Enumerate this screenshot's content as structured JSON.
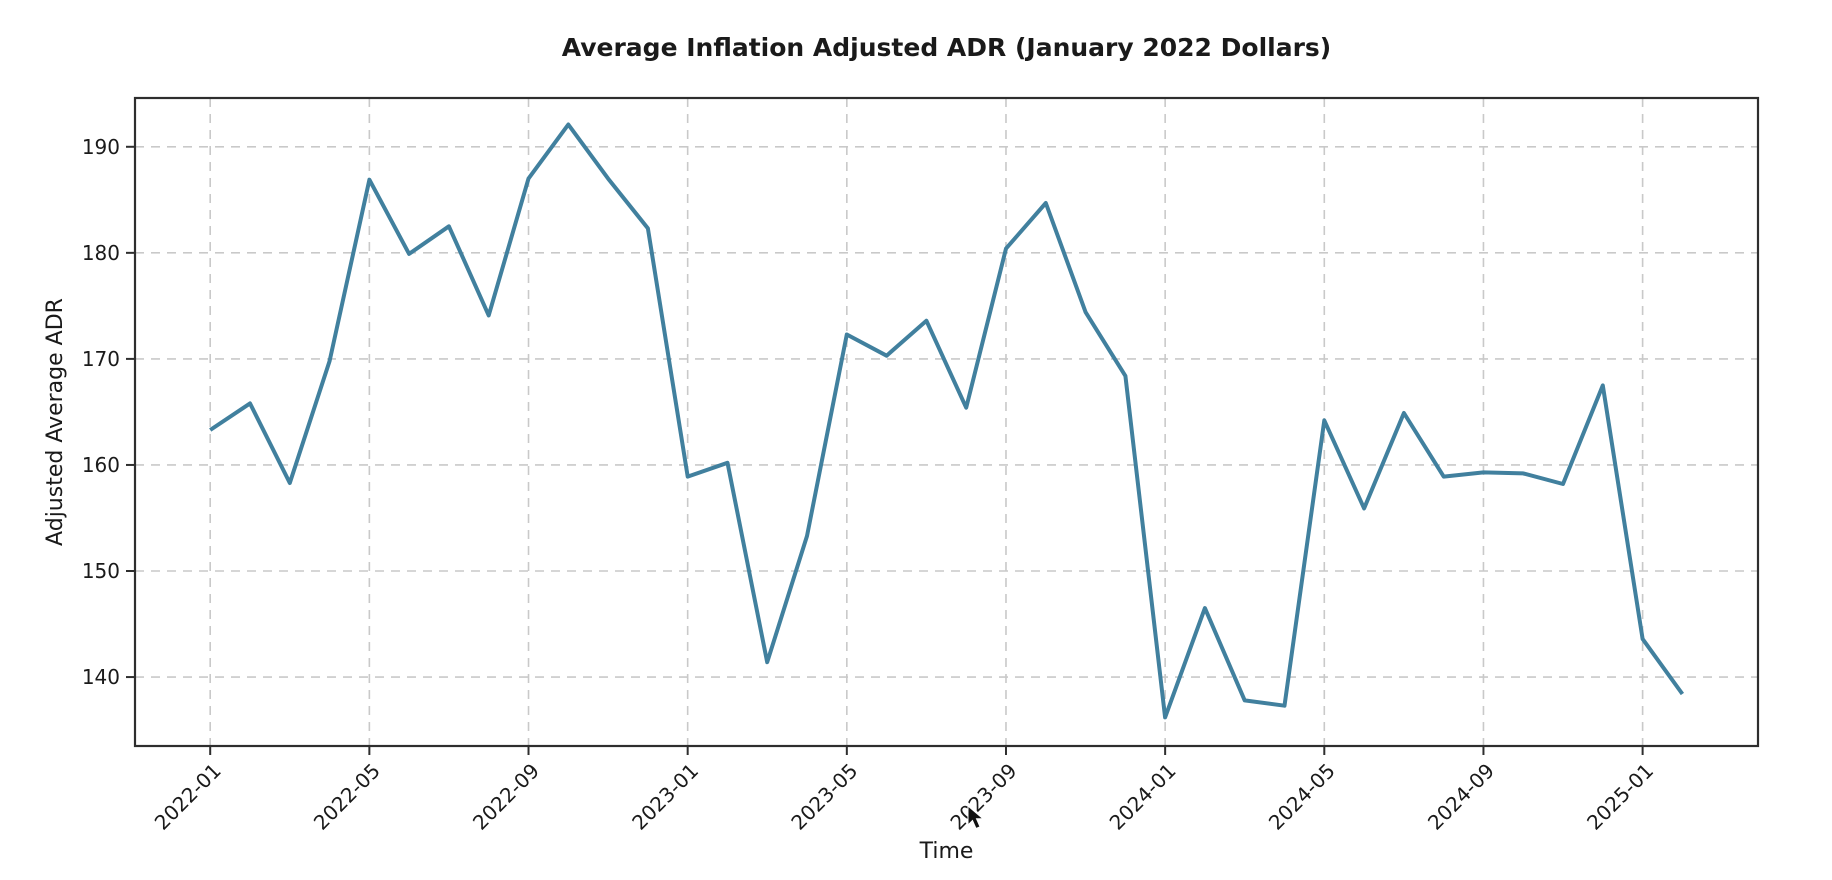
{
  "chart_data": {
    "type": "line",
    "title": "Average Inflation Adjusted ADR (January 2022 Dollars)",
    "xlabel": "Time",
    "ylabel": "Adjusted Average ADR",
    "categories": [
      "2022-01",
      "2022-02",
      "2022-03",
      "2022-04",
      "2022-05",
      "2022-06",
      "2022-07",
      "2022-08",
      "2022-09",
      "2022-10",
      "2022-11",
      "2022-12",
      "2023-01",
      "2023-02",
      "2023-03",
      "2023-04",
      "2023-05",
      "2023-06",
      "2023-07",
      "2023-08",
      "2023-09",
      "2023-10",
      "2023-11",
      "2023-12",
      "2024-01",
      "2024-02",
      "2024-03",
      "2024-04",
      "2024-05",
      "2024-06",
      "2024-07",
      "2024-08",
      "2024-09",
      "2024-10",
      "2024-11",
      "2024-12",
      "2025-01",
      "2025-02"
    ],
    "series": [
      {
        "name": "Adjusted Average ADR",
        "values": [
          163.3,
          165.8,
          158.3,
          169.8,
          186.9,
          179.9,
          182.5,
          174.1,
          187.0,
          192.1,
          187.0,
          182.3,
          158.9,
          160.2,
          141.4,
          153.3,
          172.3,
          170.3,
          173.6,
          165.4,
          180.4,
          184.7,
          174.4,
          168.4,
          136.2,
          146.5,
          137.8,
          137.3,
          164.2,
          155.9,
          164.9,
          158.9,
          159.3,
          159.2,
          158.2,
          167.5,
          143.6,
          138.4
        ]
      }
    ],
    "x_tick_positions": [
      0,
      4,
      8,
      12,
      16,
      20,
      24,
      28,
      32,
      36
    ],
    "x_tick_labels": [
      "2022-01",
      "2022-05",
      "2022-09",
      "2023-01",
      "2023-05",
      "2023-09",
      "2024-01",
      "2024-05",
      "2024-09",
      "2025-01"
    ],
    "x_tick_rotation_deg": 45,
    "y_ticks": [
      140,
      150,
      160,
      170,
      180,
      190
    ],
    "ylim": [
      133.5,
      194.6
    ],
    "xlim_index": [
      -1.89,
      38.9
    ],
    "grid": "both, dashed",
    "legend_position": "none",
    "colors": {
      "line": "#41809e",
      "grid": "#c9c9c9",
      "spine": "#2e2e2e",
      "text": "#1a1a1a"
    }
  }
}
